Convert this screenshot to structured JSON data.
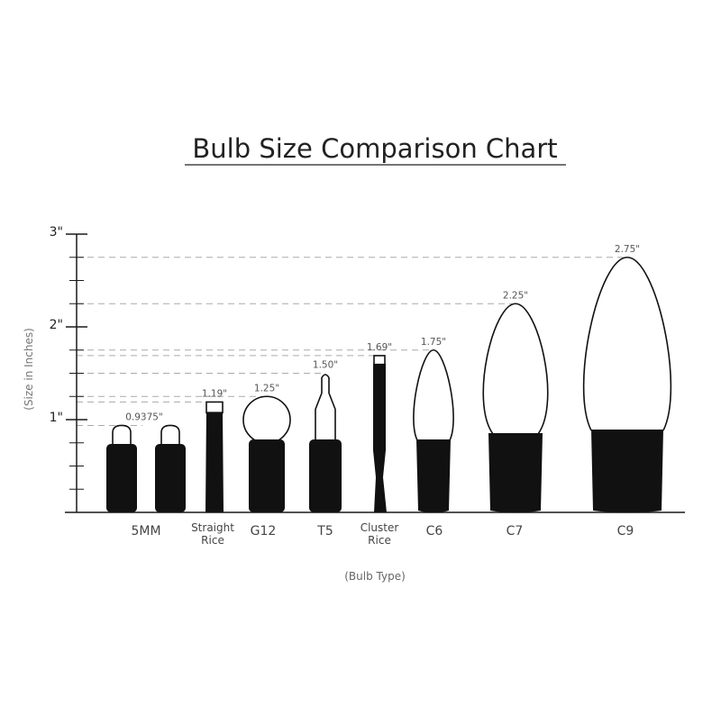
{
  "chart_data": {
    "type": "bar",
    "title": "Bulb Size Comparison Chart",
    "xlabel": "(Bulb Type)",
    "ylabel": "(Size in Inches)",
    "ylim": [
      0,
      3
    ],
    "y_ticks": [
      "1\"",
      "2\"",
      "3\""
    ],
    "minor_tick_step": 0.25,
    "categories": [
      "5MM",
      "Straight Rice",
      "G12",
      "T5",
      "Cluster Rice",
      "C6",
      "C7",
      "C9"
    ],
    "values": [
      0.9375,
      1.19,
      1.25,
      1.5,
      1.69,
      1.75,
      2.25,
      2.75
    ],
    "value_labels": [
      "0.9375\"",
      "1.19\"",
      "1.25\"",
      "1.50\"",
      "1.69\"",
      "1.75\"",
      "2.25\"",
      "2.75\""
    ],
    "grid": "dashed reference lines at each bulb height",
    "colors": {
      "axis": "#1a1a1a",
      "bulb_base": "#111111",
      "dashed_line": "#aaaaaa",
      "label": "#555555"
    }
  }
}
